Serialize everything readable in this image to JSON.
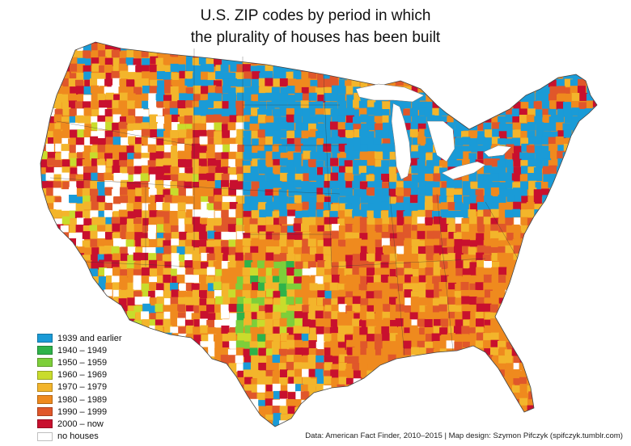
{
  "title": {
    "line1": "U.S. ZIP codes by period in which",
    "line2": "the plurality of houses has been built"
  },
  "legend": [
    {
      "label": "1939 and earlier",
      "color": "#1a9bd7"
    },
    {
      "label": "1940 – 1949",
      "color": "#2fb34a"
    },
    {
      "label": "1950 – 1959",
      "color": "#7dcf3a"
    },
    {
      "label": "1960 – 1969",
      "color": "#c9dc2c"
    },
    {
      "label": "1970 – 1979",
      "color": "#f3b52b"
    },
    {
      "label": "1980 – 1989",
      "color": "#ef8a1e"
    },
    {
      "label": "1990 – 1999",
      "color": "#e0572a"
    },
    {
      "label": "2000 – now",
      "color": "#c8102e"
    },
    {
      "label": "no houses",
      "color": "#ffffff"
    }
  ],
  "credit": "Data: American Fact Finder, 2010–2015 | Map design: Szymon Pifczyk (spifczyk.tumblr.com)"
}
